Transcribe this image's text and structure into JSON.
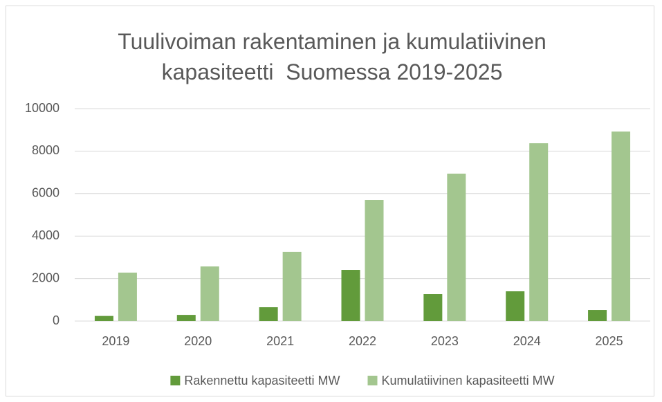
{
  "chart_data": {
    "type": "bar",
    "title": "Tuulivoiman rakentaminen ja kumulatiivinen kapasiteetti  Suomessa 2019-2025",
    "categories": [
      "2019",
      "2020",
      "2021",
      "2022",
      "2023",
      "2024",
      "2025"
    ],
    "series": [
      {
        "name": "Rakennettu kapasiteetti MW",
        "color": "#629b3b",
        "values": [
          240,
          290,
          650,
          2410,
          1270,
          1400,
          520
        ]
      },
      {
        "name": "Kumulatiivinen kapasiteetti MW",
        "color": "#a3c68f",
        "values": [
          2280,
          2570,
          3260,
          5700,
          6940,
          8370,
          8920
        ]
      }
    ],
    "ylim": [
      0,
      10000
    ],
    "yticks": [
      0,
      2000,
      4000,
      6000,
      8000,
      10000
    ],
    "grid": true,
    "legend": "bottom"
  }
}
